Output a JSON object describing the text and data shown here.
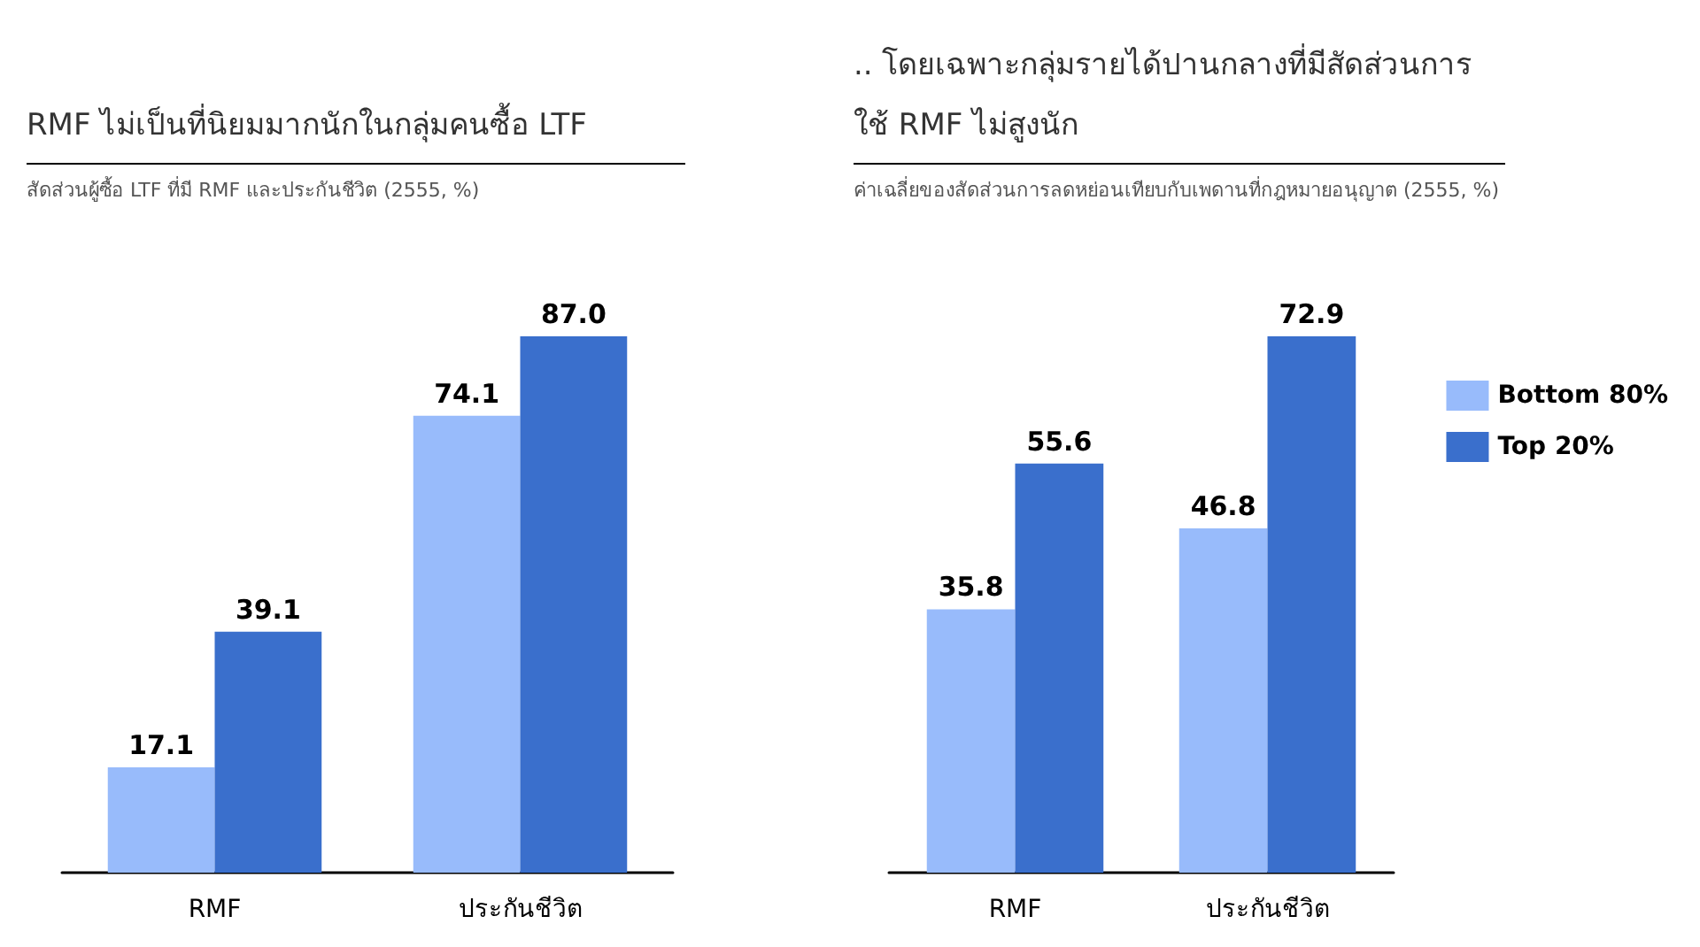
{
  "chart_data": [
    {
      "type": "bar",
      "title": "RMF ไม่เป็นที่นิยมมากนักในกลุ่มคนซื้อ LTF",
      "subtitle": "สัดส่วนผู้ซื้อ LTF ที่มี RMF และประกันชีวิต (2555, %)",
      "categories": [
        "RMF",
        "ประกันชีวิต"
      ],
      "series": [
        {
          "color": "#98bbfb",
          "values": [
            17.1,
            74.1
          ],
          "value_labels": [
            "17.1",
            "74.1"
          ]
        },
        {
          "color": "#3a6fcc",
          "values": [
            39.1,
            87.0
          ],
          "value_labels": [
            "39.1",
            "87.0"
          ]
        }
      ],
      "legend": false
    },
    {
      "type": "bar",
      "title": ".. โดยเฉพาะกลุ่มรายได้ปานกลางที่มีสัดส่วนการใช้ RMF ไม่สูงนัก",
      "subtitle": "ค่าเฉลี่ยของสัดส่วนการลดหย่อนเทียบกับเพดานที่กฎหมายอนุญาต (2555, %)",
      "categories": [
        "RMF",
        "ประกันชีวิต"
      ],
      "series": [
        {
          "name": "Bottom 80%",
          "color": "#98bbfb",
          "values": [
            35.8,
            46.8
          ],
          "value_labels": [
            "35.8",
            "46.8"
          ]
        },
        {
          "name": "Top 20%",
          "color": "#3a6fcc",
          "values": [
            55.6,
            72.9
          ],
          "value_labels": [
            "55.6",
            "72.9"
          ]
        }
      ],
      "legend": "right"
    }
  ]
}
